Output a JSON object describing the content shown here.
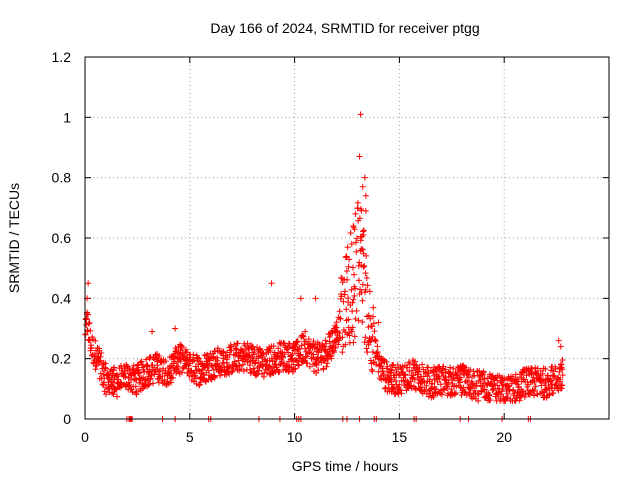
{
  "chart_data": {
    "type": "scatter",
    "title": "Day 166 of 2024, SRMTID for receiver ptgg",
    "xlabel": "GPS time / hours",
    "ylabel": "SRMTID / TECUs",
    "xlim": [
      0,
      25
    ],
    "ylim": [
      0,
      1.2
    ],
    "xticks": [
      0,
      5,
      10,
      15,
      20
    ],
    "xtick_labels": [
      "0",
      "5",
      "10",
      "15",
      "20"
    ],
    "yticks": [
      0,
      0.2,
      0.4,
      0.6,
      0.8,
      1.0,
      1.2
    ],
    "ytick_labels": [
      "0",
      "0.2",
      "0.4",
      "0.6",
      "0.8",
      "1",
      "1.2"
    ],
    "grid": true,
    "marker": "plus",
    "color": "#ff0000",
    "series": [
      {
        "name": "SRMTID",
        "profile_x": [
          0,
          0.1,
          0.3,
          0.6,
          1.0,
          1.5,
          2.0,
          2.5,
          3.0,
          3.5,
          4.0,
          4.5,
          5.0,
          5.5,
          6.0,
          6.5,
          7.0,
          7.5,
          8.0,
          8.5,
          9.0,
          9.5,
          10.0,
          10.5,
          11.0,
          11.5,
          12.0,
          12.3,
          12.6,
          12.9,
          13.1,
          13.3,
          13.6,
          14.0,
          14.5,
          15.0,
          15.5,
          16.0,
          16.5,
          17.0,
          17.5,
          18.0,
          18.5,
          19.0,
          19.5,
          20.0,
          20.5,
          21.0,
          21.5,
          22.0,
          22.5,
          22.8
        ],
        "profile_y": [
          0.25,
          0.33,
          0.24,
          0.2,
          0.13,
          0.12,
          0.14,
          0.13,
          0.16,
          0.17,
          0.16,
          0.2,
          0.17,
          0.16,
          0.18,
          0.19,
          0.2,
          0.21,
          0.2,
          0.18,
          0.2,
          0.21,
          0.2,
          0.24,
          0.2,
          0.22,
          0.28,
          0.34,
          0.42,
          0.48,
          0.52,
          0.45,
          0.32,
          0.18,
          0.13,
          0.13,
          0.15,
          0.14,
          0.12,
          0.13,
          0.12,
          0.13,
          0.11,
          0.11,
          0.1,
          0.09,
          0.1,
          0.12,
          0.12,
          0.12,
          0.13,
          0.15
        ],
        "spread": 0.05,
        "peaks": [
          {
            "x": 13.15,
            "y": 1.01
          },
          {
            "x": 13.1,
            "y": 0.87
          },
          {
            "x": 13.35,
            "y": 0.8
          },
          {
            "x": 13.25,
            "y": 0.77
          },
          {
            "x": 13.4,
            "y": 0.74
          },
          {
            "x": 12.9,
            "y": 0.68
          },
          {
            "x": 13.4,
            "y": 0.69
          },
          {
            "x": 12.8,
            "y": 0.64
          },
          {
            "x": 8.9,
            "y": 0.45
          },
          {
            "x": 0.15,
            "y": 0.45
          },
          {
            "x": 0.1,
            "y": 0.4
          },
          {
            "x": 10.3,
            "y": 0.4
          },
          {
            "x": 11.0,
            "y": 0.4
          },
          {
            "x": 14.0,
            "y": 0.32
          },
          {
            "x": 4.3,
            "y": 0.3
          },
          {
            "x": 3.2,
            "y": 0.29
          },
          {
            "x": 22.6,
            "y": 0.26
          },
          {
            "x": 22.7,
            "y": 0.24
          }
        ],
        "zero_x": [
          2.0,
          2.1,
          2.15,
          2.2,
          2.25,
          3.7,
          4.3,
          5.9,
          6.0,
          8.3,
          9.3,
          10.1,
          10.2,
          10.3,
          12.3,
          12.5,
          13.1,
          13.8,
          13.9,
          15.7,
          15.8,
          17.9,
          18.3,
          19.9,
          21.15,
          21.25
        ]
      }
    ]
  }
}
